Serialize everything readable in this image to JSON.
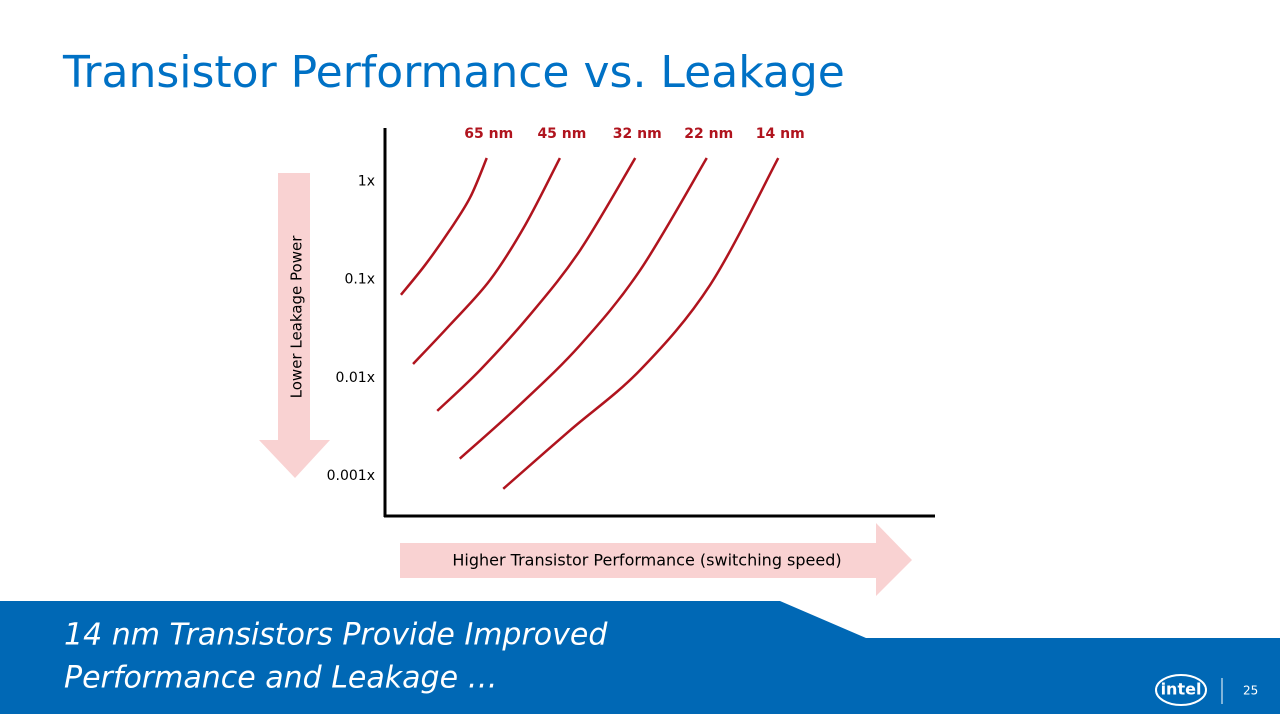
{
  "chart_data": {
    "type": "line",
    "title": "Transistor Performance vs. Leakage",
    "y_label": "Lower Leakage Power",
    "x_label": "Higher Transistor Performance (switching speed)",
    "log_y": true,
    "xlim": [
      0,
      100
    ],
    "ylim": [
      0.0004,
      3.5
    ],
    "yticks": [
      {
        "value": 1,
        "label": "1x"
      },
      {
        "value": 0.1,
        "label": "0.1x"
      },
      {
        "value": 0.01,
        "label": "0.01x"
      },
      {
        "value": 0.001,
        "label": "0.001x"
      }
    ],
    "series": [
      {
        "name": "65 nm",
        "color": "#b0141e",
        "x": [
          2.9,
          7.3,
          11.8,
          15.5,
          18.5
        ],
        "values": [
          0.07,
          0.141,
          0.32,
          0.69,
          1.73
        ]
      },
      {
        "name": "45 nm",
        "color": "#b0141e",
        "x": [
          5.1,
          11.8,
          19.1,
          25.5,
          31.8
        ],
        "values": [
          0.0138,
          0.0345,
          0.099,
          0.36,
          1.73
        ]
      },
      {
        "name": "32 nm",
        "color": "#b0141e",
        "x": [
          9.5,
          17.3,
          26.4,
          35.5,
          45.5
        ],
        "values": [
          0.0046,
          0.012,
          0.044,
          0.2,
          1.73
        ]
      },
      {
        "name": "22 nm",
        "color": "#b0141e",
        "x": [
          13.6,
          24.5,
          35.5,
          46.4,
          58.5
        ],
        "values": [
          0.0015,
          0.0053,
          0.0216,
          0.125,
          1.73
        ]
      },
      {
        "name": "14 nm",
        "color": "#b0141e",
        "x": [
          21.5,
          33.6,
          46.4,
          59.1,
          71.5
        ],
        "values": [
          0.00074,
          0.0029,
          0.012,
          0.088,
          1.73
        ]
      }
    ]
  },
  "footer": {
    "lines": [
      "14 nm Transistors Provide Improved",
      "Performance and Leakage …"
    ],
    "logo": "intel",
    "page_number": "25"
  }
}
